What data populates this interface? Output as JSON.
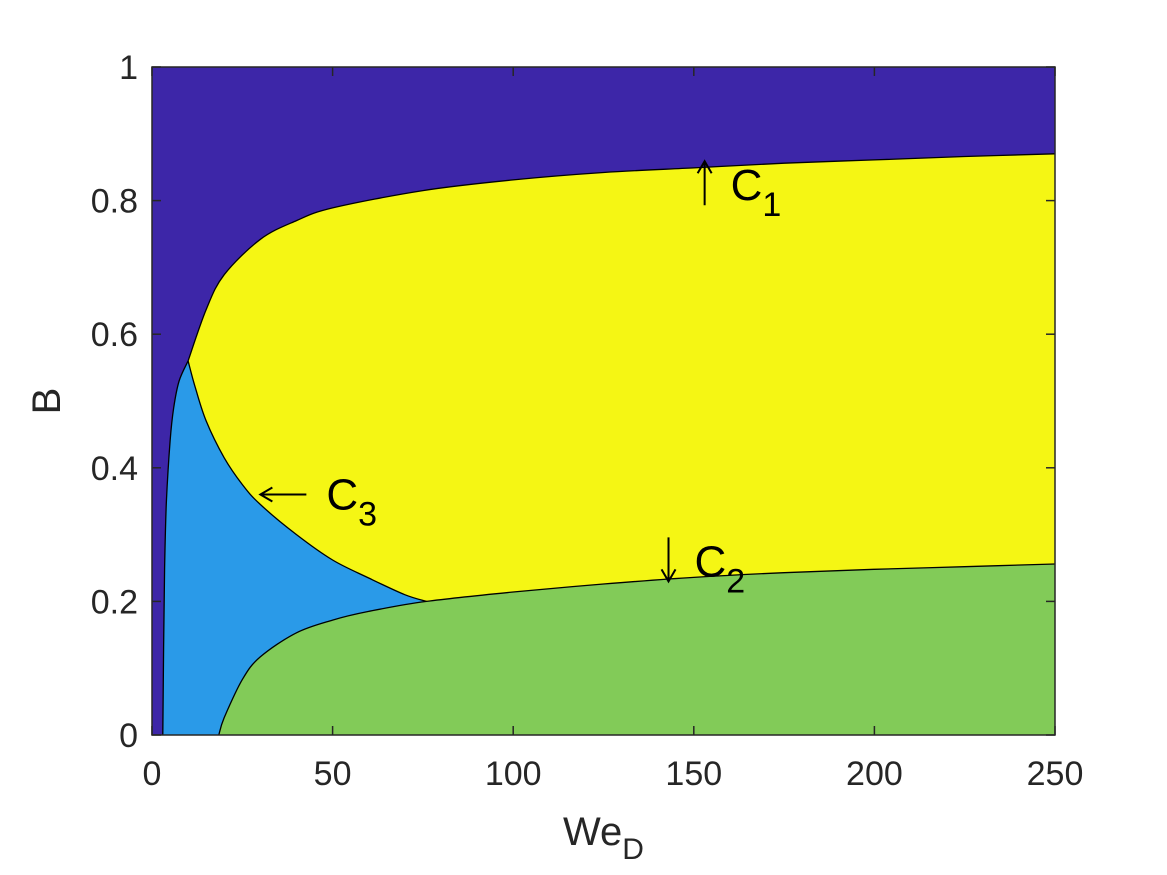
{
  "chart_data": {
    "type": "area",
    "title": "",
    "xlabel": "We",
    "xlabel_sub": "D",
    "ylabel": "B",
    "xlim": [
      0,
      250
    ],
    "ylim": [
      0,
      1
    ],
    "xticks": [
      0,
      50,
      100,
      150,
      200,
      250
    ],
    "yticks": [
      0,
      0.2,
      0.4,
      0.6,
      0.8,
      1
    ],
    "xtick_labels": [
      "0",
      "50",
      "100",
      "150",
      "200",
      "250"
    ],
    "ytick_labels": [
      "0",
      "0.2",
      "0.4",
      "0.6",
      "0.8",
      "1"
    ],
    "grid": false,
    "colors": {
      "top_region": "#3d26a8",
      "middle_region": "#f5f614",
      "lower_region": "#82cb58",
      "left_region": "#2a9ae8"
    },
    "curves": {
      "C1": {
        "x": [
          10,
          15,
          20,
          30,
          40,
          50,
          75,
          100,
          125,
          150,
          175,
          200,
          225,
          250
        ],
        "y": [
          0.56,
          0.637,
          0.689,
          0.742,
          0.77,
          0.789,
          0.815,
          0.831,
          0.842,
          0.849,
          0.856,
          0.861,
          0.866,
          0.87
        ]
      },
      "C2": {
        "x": [
          18.5,
          20,
          25,
          30,
          40,
          50,
          60,
          76,
          100,
          125,
          150,
          175,
          200,
          225,
          250
        ],
        "y": [
          0,
          0.026,
          0.083,
          0.117,
          0.153,
          0.172,
          0.185,
          0.2,
          0.214,
          0.226,
          0.236,
          0.243,
          0.248,
          0.252,
          0.256
        ]
      },
      "C3": {
        "x": [
          10,
          12,
          15,
          20,
          25,
          30,
          40,
          50,
          60,
          70,
          76
        ],
        "y": [
          0.56,
          0.52,
          0.47,
          0.415,
          0.375,
          0.345,
          0.3,
          0.262,
          0.235,
          0.21,
          0.2
        ]
      },
      "left_boundary": {
        "x": [
          3,
          3.2,
          3.5,
          4,
          5,
          6,
          7.5,
          10
        ],
        "y": [
          0,
          0.13,
          0.25,
          0.35,
          0.44,
          0.49,
          0.53,
          0.56
        ]
      }
    },
    "annotations": [
      {
        "label": "C",
        "sub": "1",
        "arrow": "up",
        "x": 153,
        "y": 0.85
      },
      {
        "label": "C",
        "sub": "2",
        "arrow": "down",
        "x": 143,
        "y": 0.23
      },
      {
        "label": "C",
        "sub": "3",
        "arrow": "left",
        "x": 30,
        "y": 0.36
      }
    ]
  }
}
